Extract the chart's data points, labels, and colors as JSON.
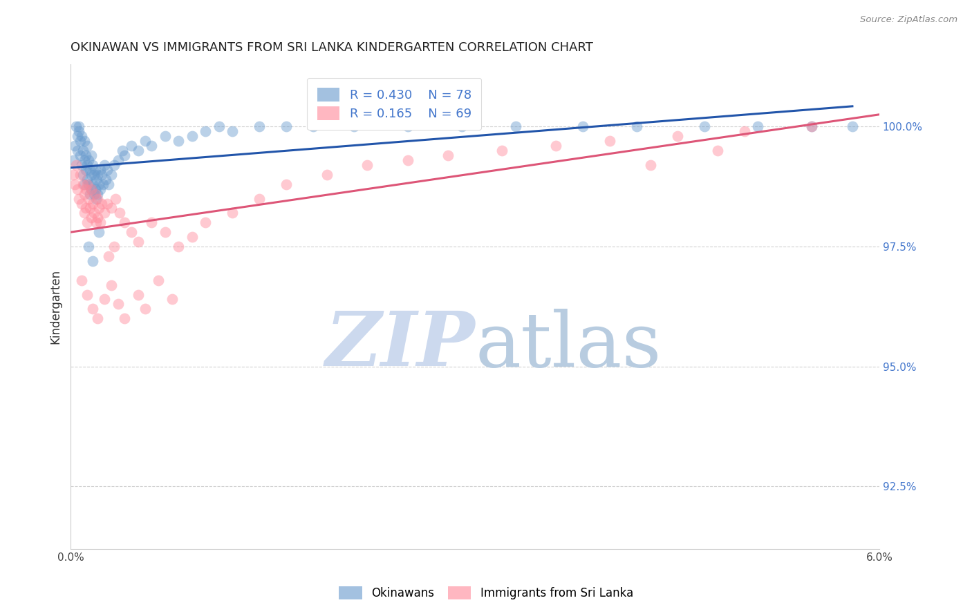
{
  "title": "OKINAWAN VS IMMIGRANTS FROM SRI LANKA KINDERGARTEN CORRELATION CHART",
  "source": "Source: ZipAtlas.com",
  "ylabel": "Kindergarten",
  "y_tick_labels": [
    "92.5%",
    "95.0%",
    "97.5%",
    "100.0%"
  ],
  "y_tick_values": [
    92.5,
    95.0,
    97.5,
    100.0
  ],
  "xlim": [
    0.0,
    6.0
  ],
  "ylim": [
    91.2,
    101.3
  ],
  "blue_R": 0.43,
  "blue_N": 78,
  "pink_R": 0.165,
  "pink_N": 69,
  "blue_color": "#6699cc",
  "pink_color": "#ff8899",
  "blue_line_color": "#2255aa",
  "pink_line_color": "#dd5577",
  "legend_label_blue": "Okinawans",
  "legend_label_pink": "Immigrants from Sri Lanka",
  "watermark_zip_color": "#ccd9ee",
  "watermark_atlas_color": "#b8cce0",
  "title_color": "#222222",
  "right_axis_color": "#4477cc",
  "background_color": "#ffffff",
  "blue_x": [
    0.02,
    0.03,
    0.04,
    0.05,
    0.05,
    0.06,
    0.06,
    0.07,
    0.07,
    0.08,
    0.08,
    0.09,
    0.09,
    0.1,
    0.1,
    0.1,
    0.11,
    0.11,
    0.12,
    0.12,
    0.12,
    0.13,
    0.13,
    0.14,
    0.14,
    0.15,
    0.15,
    0.15,
    0.16,
    0.16,
    0.17,
    0.17,
    0.18,
    0.18,
    0.19,
    0.19,
    0.2,
    0.2,
    0.21,
    0.22,
    0.22,
    0.23,
    0.24,
    0.25,
    0.26,
    0.27,
    0.28,
    0.3,
    0.32,
    0.35,
    0.38,
    0.4,
    0.45,
    0.5,
    0.55,
    0.6,
    0.7,
    0.8,
    0.9,
    1.0,
    1.1,
    1.2,
    1.4,
    1.6,
    1.8,
    2.1,
    2.5,
    2.9,
    3.3,
    3.8,
    4.2,
    4.7,
    5.1,
    5.5,
    5.8,
    0.13,
    0.16,
    0.21
  ],
  "blue_y": [
    99.3,
    99.6,
    100.0,
    99.8,
    99.5,
    99.9,
    100.0,
    99.7,
    99.4,
    99.8,
    99.2,
    99.5,
    99.0,
    99.7,
    99.3,
    98.8,
    99.4,
    99.1,
    99.6,
    99.2,
    98.9,
    99.3,
    98.8,
    99.1,
    98.6,
    99.4,
    99.0,
    98.7,
    99.2,
    98.8,
    99.0,
    98.6,
    99.1,
    98.7,
    98.9,
    98.5,
    99.0,
    98.6,
    98.8,
    99.1,
    98.7,
    99.0,
    98.8,
    99.2,
    98.9,
    99.1,
    98.8,
    99.0,
    99.2,
    99.3,
    99.5,
    99.4,
    99.6,
    99.5,
    99.7,
    99.6,
    99.8,
    99.7,
    99.8,
    99.9,
    100.0,
    99.9,
    100.0,
    100.0,
    100.0,
    100.0,
    100.0,
    100.0,
    100.0,
    100.0,
    100.0,
    100.0,
    100.0,
    100.0,
    100.0,
    97.5,
    97.2,
    97.8
  ],
  "pink_x": [
    0.02,
    0.03,
    0.04,
    0.05,
    0.06,
    0.07,
    0.08,
    0.09,
    0.1,
    0.1,
    0.11,
    0.11,
    0.12,
    0.12,
    0.13,
    0.14,
    0.15,
    0.15,
    0.16,
    0.17,
    0.18,
    0.19,
    0.2,
    0.2,
    0.21,
    0.22,
    0.23,
    0.25,
    0.27,
    0.3,
    0.33,
    0.36,
    0.4,
    0.45,
    0.5,
    0.6,
    0.7,
    0.8,
    0.9,
    1.0,
    1.2,
    1.4,
    1.6,
    1.9,
    2.2,
    2.5,
    2.8,
    3.2,
    3.6,
    4.0,
    4.5,
    5.0,
    5.5,
    0.08,
    0.12,
    0.16,
    0.2,
    0.25,
    0.3,
    0.35,
    0.4,
    0.5,
    0.55,
    0.65,
    0.75,
    4.3,
    4.8,
    0.28,
    0.32
  ],
  "pink_y": [
    99.0,
    98.8,
    99.2,
    98.7,
    98.5,
    99.0,
    98.4,
    98.8,
    98.6,
    98.2,
    98.7,
    98.3,
    98.8,
    98.0,
    98.5,
    98.3,
    98.7,
    98.1,
    98.4,
    98.2,
    98.6,
    98.0,
    98.5,
    98.1,
    98.3,
    98.0,
    98.4,
    98.2,
    98.4,
    98.3,
    98.5,
    98.2,
    98.0,
    97.8,
    97.6,
    98.0,
    97.8,
    97.5,
    97.7,
    98.0,
    98.2,
    98.5,
    98.8,
    99.0,
    99.2,
    99.3,
    99.4,
    99.5,
    99.6,
    99.7,
    99.8,
    99.9,
    100.0,
    96.8,
    96.5,
    96.2,
    96.0,
    96.4,
    96.7,
    96.3,
    96.0,
    96.5,
    96.2,
    96.8,
    96.4,
    99.2,
    99.5,
    97.3,
    97.5
  ]
}
